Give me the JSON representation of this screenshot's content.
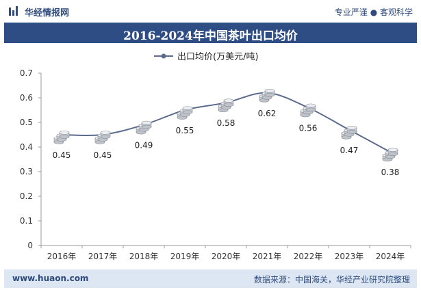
{
  "header": {
    "brand": "华经情报网",
    "slogan": "专业严谨 ● 客观科学",
    "accent_color": "#2e4d85",
    "logo_icon": "bar-logo-icon"
  },
  "chart_data": {
    "type": "line",
    "title": "2016-2024年中国茶叶出口均价",
    "categories": [
      "2016年",
      "2017年",
      "2018年",
      "2019年",
      "2020年",
      "2021年",
      "2022年",
      "2023年",
      "2024年"
    ],
    "series": [
      {
        "name": "出口均价(万美元/吨)",
        "values": [
          0.45,
          0.45,
          0.49,
          0.55,
          0.58,
          0.62,
          0.56,
          0.47,
          0.38
        ],
        "color": "#5b6b8c"
      }
    ],
    "ylim": [
      0,
      0.7
    ],
    "yticks": [
      "0",
      "0.1",
      "0.2",
      "0.3",
      "0.4",
      "0.5",
      "0.6",
      "0.7"
    ],
    "data_labels": [
      "0.45",
      "0.45",
      "0.49",
      "0.55",
      "0.58",
      "0.62",
      "0.56",
      "0.47",
      "0.38"
    ],
    "legend_position": "top",
    "grid": false,
    "marker": "coin-stack-icon"
  },
  "footer": {
    "website": "www.huaon.com",
    "source": "数据来源：中国海关，华经产业研究院整理"
  }
}
